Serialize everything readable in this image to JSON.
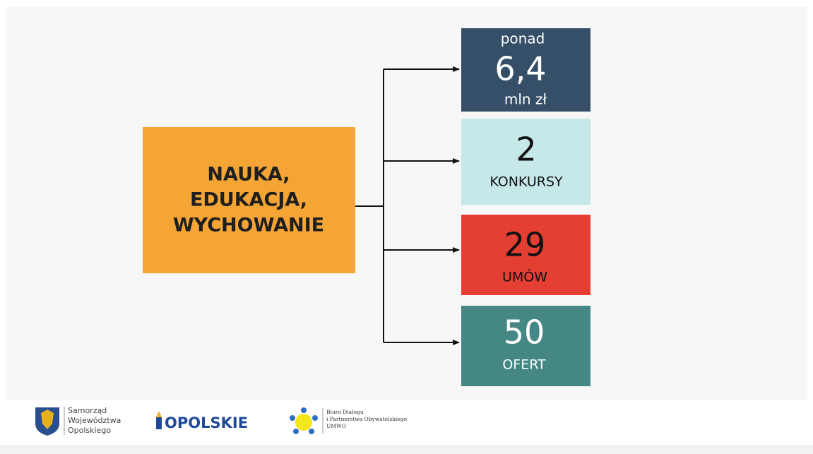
{
  "center": {
    "lines": [
      "NAUKA,",
      "EDUKACJA,",
      "WYCHOWANIE"
    ]
  },
  "boxes": [
    {
      "lines": [
        "ponad",
        "6,4",
        "mln zł"
      ]
    },
    {
      "lines": [
        "2",
        "KONKURSY"
      ]
    },
    {
      "lines": [
        "29",
        "UMÓW"
      ]
    },
    {
      "lines": [
        "50",
        "OFERT"
      ]
    }
  ],
  "footer": {
    "samorzad": [
      "Samorząd",
      "Województwa",
      "Opolskiego"
    ],
    "opolskie": "OPOLSKIE",
    "biuro": [
      "Biuro Dialogu",
      "i Partnerstwa Obywatelskiego",
      "UMWO"
    ]
  }
}
